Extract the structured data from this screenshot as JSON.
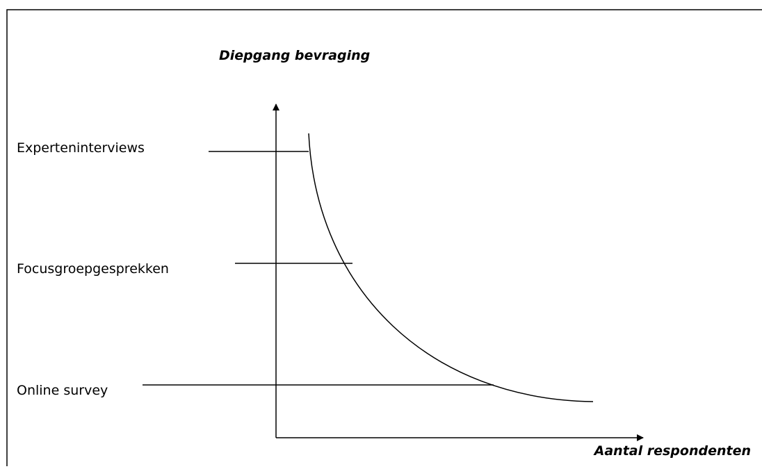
{
  "y_axis_label": "Diepgang bevraging",
  "x_axis_label": "Aantal respondenten",
  "levels": [
    "Experteninterviews",
    "Focusgroepgesprekken",
    "Online survey"
  ]
}
